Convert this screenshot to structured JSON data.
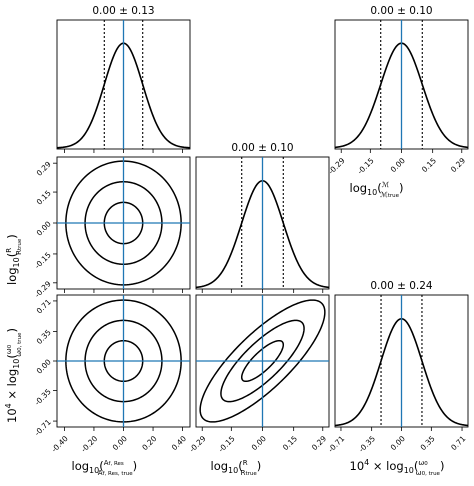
{
  "chart_data": {
    "type": "corner",
    "parameters": [
      {
        "key": "logA",
        "label_html": "log<tspan font-size='8' dy='3'>10</tspan><tspan dy='-3'>(</tspan><tspan font-size='7' dy='-5'>A<tspan font-size='5.5'>f, Res</tspan></tspan><tspan font-size='7' dx='-26' dy='10'>A<tspan font-size='5.5'>f, Res, true</tspan></tspan><tspan dy='-5'>)</tspan>",
        "ticks": [
          -0.4,
          -0.2,
          0.0,
          0.2,
          0.4
        ],
        "tick_labels": [
          "-0.40",
          "-0.20",
          "0.00",
          "0.20",
          "0.40"
        ],
        "range": [
          -0.45,
          0.45
        ],
        "truth": 0.0,
        "sigma": 0.13,
        "title": "0.00 ± 0.13"
      },
      {
        "key": "logR",
        "label_html": "log<tspan font-size='8' dy='3'>10</tspan><tspan dy='-3'>(</tspan><tspan font-size='7' dy='-5'>R</tspan><tspan font-size='7' dx='-7' dy='10'>R<tspan font-size='5.5'>true</tspan></tspan><tspan dy='-5'>)</tspan>",
        "ticks": [
          -0.29,
          -0.15,
          0.0,
          0.15,
          0.29
        ],
        "tick_labels": [
          "-0.29",
          "-0.15",
          "0.00",
          "0.15",
          "0.29"
        ],
        "range": [
          -0.32,
          0.32
        ],
        "truth": 0.0,
        "sigma": 0.1,
        "title": "0.00 ± 0.10"
      },
      {
        "key": "logOmega",
        "label_html": "10<tspan font-size='8' dy='-5'>4</tspan><tspan dy='5'> × log</tspan><tspan font-size='8' dy='3'>10</tspan><tspan dy='-3'>(</tspan><tspan font-size='7' dy='-5'>ω<tspan font-size='5.5'>0</tspan></tspan><tspan font-size='7' dx='-12' dy='10'>ω<tspan font-size='5.5'>0, true</tspan></tspan><tspan dy='-5'>)</tspan>",
        "ticks": [
          -0.71,
          -0.35,
          0.0,
          0.35,
          0.71
        ],
        "tick_labels": [
          "-0.71",
          "-0.35",
          "0.00",
          "0.35",
          "0.71"
        ],
        "range": [
          -0.78,
          0.78
        ],
        "truth": 0.0,
        "sigma": 0.24,
        "title": "0.00 ± 0.24"
      },
      {
        "key": "logM",
        "label_html": "log<tspan font-size='8' dy='3'>10</tspan><tspan dy='-3'>(</tspan><tspan font-size='7' dy='-5'>ℳ</tspan><tspan font-size='7' dx='-9' dy='10'>ℳ<tspan font-size='5.5'>true</tspan></tspan><tspan dy='-5'>)</tspan>",
        "ticks": [
          -0.29,
          -0.15,
          0.0,
          0.15,
          0.29
        ],
        "tick_labels": [
          "-0.29",
          "-0.15",
          "0.00",
          "0.15",
          "0.29"
        ],
        "range": [
          -0.32,
          0.32
        ],
        "truth": 0.0,
        "sigma": 0.1,
        "title": "0.00 ± 0.10"
      }
    ],
    "panels": [
      {
        "kind": "hist",
        "param": "logA"
      },
      {
        "kind": "hist",
        "param": "logM"
      },
      {
        "kind": "ellipse",
        "x": "logA",
        "y": "logR",
        "correlation": 0.0,
        "levels": [
          1,
          2,
          3
        ]
      },
      {
        "kind": "hist",
        "param": "logR"
      },
      {
        "kind": "ellipse",
        "x": "logA",
        "y": "logOmega",
        "correlation": 0.0,
        "levels": [
          1,
          2,
          3
        ]
      },
      {
        "kind": "ellipse",
        "x": "logR",
        "y": "logOmega",
        "correlation": 0.8,
        "levels": [
          1,
          2,
          3
        ]
      },
      {
        "kind": "hist",
        "param": "logOmega"
      }
    ],
    "x_axis_labels": [
      "logA",
      "logR",
      "logOmega",
      "logM"
    ],
    "y_axis_labels": [
      "logR",
      "logOmega"
    ],
    "quantile_lines": "± 1σ dotted",
    "truth_color": "#1f77b4",
    "grid": false
  }
}
